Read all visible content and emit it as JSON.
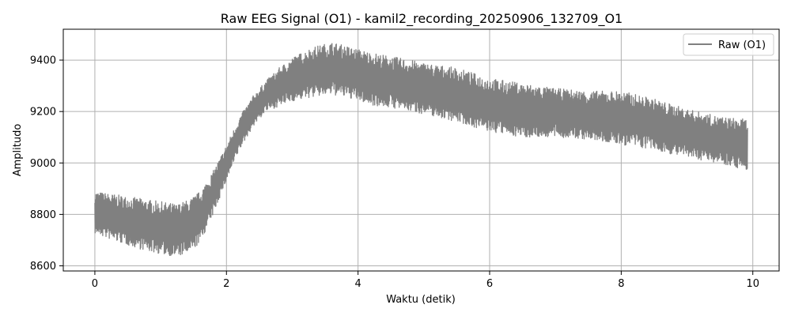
{
  "chart_data": {
    "type": "line",
    "title": "Raw EEG Signal (O1) - kamil2_recording_20250906_132709_O1",
    "xlabel": "Waktu (detik)",
    "ylabel": "Amplitudo",
    "xlim": [
      -0.48,
      10.4
    ],
    "ylim": [
      8580,
      9520
    ],
    "x_ticks": [
      0,
      2,
      4,
      6,
      8,
      10
    ],
    "y_ticks": [
      8600,
      8800,
      9000,
      9200,
      9400
    ],
    "grid": true,
    "legend": {
      "placement": "top-right"
    },
    "series": [
      {
        "name": "Raw (O1)",
        "color": "#808080",
        "x_range": [
          0,
          9.92
        ],
        "envelope": [
          {
            "x": 0.0,
            "low": 8725,
            "high": 8890
          },
          {
            "x": 0.25,
            "low": 8700,
            "high": 8880
          },
          {
            "x": 0.5,
            "low": 8680,
            "high": 8870
          },
          {
            "x": 0.75,
            "low": 8660,
            "high": 8860
          },
          {
            "x": 1.0,
            "low": 8645,
            "high": 8850
          },
          {
            "x": 1.25,
            "low": 8635,
            "high": 8840
          },
          {
            "x": 1.45,
            "low": 8650,
            "high": 8860
          },
          {
            "x": 1.6,
            "low": 8690,
            "high": 8890
          },
          {
            "x": 1.8,
            "low": 8800,
            "high": 8970
          },
          {
            "x": 2.0,
            "low": 8930,
            "high": 9070
          },
          {
            "x": 2.2,
            "low": 9050,
            "high": 9180
          },
          {
            "x": 2.4,
            "low": 9140,
            "high": 9260
          },
          {
            "x": 2.6,
            "low": 9200,
            "high": 9320
          },
          {
            "x": 2.8,
            "low": 9220,
            "high": 9370
          },
          {
            "x": 3.0,
            "low": 9240,
            "high": 9410
          },
          {
            "x": 3.3,
            "low": 9255,
            "high": 9450
          },
          {
            "x": 3.6,
            "low": 9265,
            "high": 9470
          },
          {
            "x": 3.9,
            "low": 9250,
            "high": 9450
          },
          {
            "x": 4.2,
            "low": 9225,
            "high": 9430
          },
          {
            "x": 4.6,
            "low": 9210,
            "high": 9410
          },
          {
            "x": 5.0,
            "low": 9190,
            "high": 9390
          },
          {
            "x": 5.5,
            "low": 9160,
            "high": 9370
          },
          {
            "x": 6.0,
            "low": 9120,
            "high": 9330
          },
          {
            "x": 6.5,
            "low": 9100,
            "high": 9310
          },
          {
            "x": 7.0,
            "low": 9100,
            "high": 9290
          },
          {
            "x": 7.5,
            "low": 9090,
            "high": 9280
          },
          {
            "x": 8.0,
            "low": 9070,
            "high": 9280
          },
          {
            "x": 8.5,
            "low": 9050,
            "high": 9250
          },
          {
            "x": 9.0,
            "low": 9020,
            "high": 9210
          },
          {
            "x": 9.5,
            "low": 9000,
            "high": 9180
          },
          {
            "x": 9.92,
            "low": 8970,
            "high": 9170
          }
        ]
      }
    ]
  }
}
